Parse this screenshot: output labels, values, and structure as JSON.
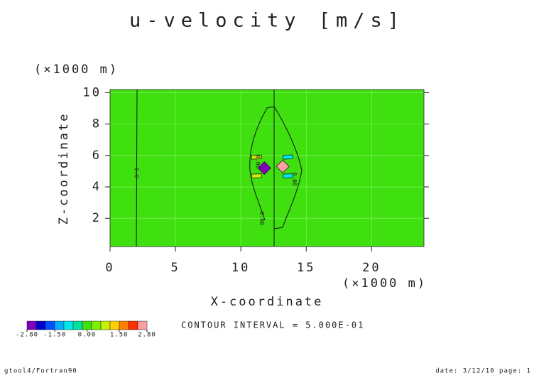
{
  "chart_data": {
    "type": "contour",
    "title": "u-velocity [m/s]",
    "x_label": "X-coordinate",
    "y_label": "Z-coordinate",
    "x_unit": "(×1000 m)",
    "y_unit": "(×1000 m)",
    "xlim": [
      0,
      24
    ],
    "ylim": [
      0.2,
      10.2
    ],
    "xticks": [
      0,
      5,
      10,
      15,
      20
    ],
    "yticks": [
      2,
      4,
      6,
      8,
      10
    ],
    "grid": true,
    "background_value": 0,
    "patches": [
      {
        "x": 11.8,
        "y": 5.2,
        "value": -2.8
      },
      {
        "x": 13.2,
        "y": 5.3,
        "value": 2.8
      },
      {
        "x": 11.2,
        "y": 5.9,
        "value": 1.0
      },
      {
        "x": 11.2,
        "y": 4.7,
        "value": 1.0
      },
      {
        "x": 13.6,
        "y": 5.9,
        "value": -1.0
      },
      {
        "x": 13.6,
        "y": 4.7,
        "value": -1.0
      }
    ],
    "contour_labels": [
      {
        "x": 2.0,
        "y": 4.9,
        "label": "0.0"
      },
      {
        "x": 11.3,
        "y": 5.6,
        "label": "0.00"
      },
      {
        "x": 14.1,
        "y": 4.5,
        "label": "0.00"
      },
      {
        "x": 11.6,
        "y": 2.0,
        "label": "0.00"
      }
    ],
    "colorbar": {
      "colors": [
        "#8000c0",
        "#0000d0",
        "#0050ff",
        "#00b0ff",
        "#00e8e8",
        "#00e0a0",
        "#40e010",
        "#80f000",
        "#c8f000",
        "#ffd000",
        "#ff8000",
        "#ff3000",
        "#ffa0a0"
      ],
      "range": [
        -2.8,
        2.8
      ],
      "ticks": [
        {
          "value": -2.8,
          "label": "-2.80"
        },
        {
          "value": -1.5,
          "label": "-1.50"
        },
        {
          "value": 0,
          "label": "0.00"
        },
        {
          "value": 1.5,
          "label": "1.50"
        },
        {
          "value": 2.8,
          "label": "2.80"
        }
      ]
    },
    "annotation": "CONTOUR INTERVAL = 5.000E-01",
    "footer_left": "gtool4/Fortran90",
    "footer_right": "date: 3/12/10 page: 1"
  }
}
